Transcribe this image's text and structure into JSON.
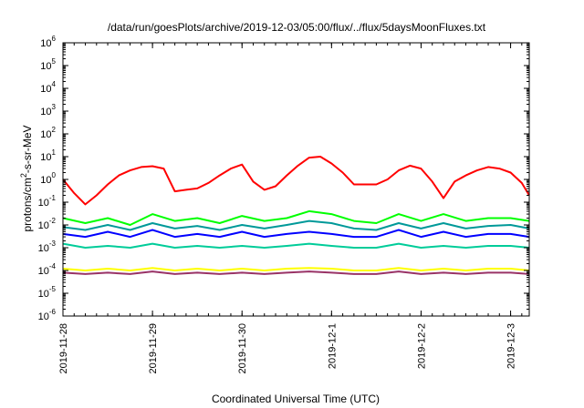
{
  "chart_data": {
    "type": "line",
    "title": "/data/run/goesPlots/archive/2019-12-03/05:00/flux/../flux/5daysMoonFluxes.txt",
    "xlabel": "Coordinated Universal Time (UTC)",
    "ylabel": "protons/cm2-s-sr-MeV",
    "ylabel_parts": {
      "pre": "protons/cm",
      "sup": "2",
      "post": "-s-sr-MeV"
    },
    "y_scale": "log",
    "ylim": [
      -6,
      6
    ],
    "y_ticks": [
      {
        "exp": -6,
        "label": "-6"
      },
      {
        "exp": -5,
        "label": "-5"
      },
      {
        "exp": -4,
        "label": "-4"
      },
      {
        "exp": -3,
        "label": "-3"
      },
      {
        "exp": -2,
        "label": "-2"
      },
      {
        "exp": -1,
        "label": "-1"
      },
      {
        "exp": 0,
        "label": "0"
      },
      {
        "exp": 1,
        "label": "1"
      },
      {
        "exp": 2,
        "label": "2"
      },
      {
        "exp": 3,
        "label": "3"
      },
      {
        "exp": 4,
        "label": "4"
      },
      {
        "exp": 5,
        "label": "5"
      },
      {
        "exp": 6,
        "label": "6"
      }
    ],
    "xlim": [
      "2019-11-28",
      "2019-12-03T05:00"
    ],
    "x_ticks": [
      {
        "date": "2019-11-28",
        "label": "2019-11-28"
      },
      {
        "date": "2019-11-29",
        "label": "2019-11-29"
      },
      {
        "date": "2019-11-30",
        "label": "2019-11-30"
      },
      {
        "date": "2019-12-01",
        "label": "2019-12-1"
      },
      {
        "date": "2019-12-02",
        "label": "2019-12-2"
      },
      {
        "date": "2019-12-03",
        "label": "2019-12-3"
      }
    ],
    "grid": false,
    "series": [
      {
        "color": "#ff0000",
        "x": [
          "2019-11-28T00:00",
          "2019-11-28T03:00",
          "2019-11-28T06:00",
          "2019-11-28T09:00",
          "2019-11-28T12:00",
          "2019-11-28T15:00",
          "2019-11-28T18:00",
          "2019-11-28T21:00",
          "2019-11-29T00:00",
          "2019-11-29T03:00",
          "2019-11-29T06:00",
          "2019-11-29T09:00",
          "2019-11-29T12:00",
          "2019-11-29T15:00",
          "2019-11-29T18:00",
          "2019-11-29T21:00",
          "2019-11-30T00:00",
          "2019-11-30T03:00",
          "2019-11-30T06:00",
          "2019-11-30T09:00",
          "2019-11-30T12:00",
          "2019-11-30T15:00",
          "2019-11-30T18:00",
          "2019-11-30T21:00",
          "2019-12-01T00:00",
          "2019-12-01T03:00",
          "2019-12-01T06:00",
          "2019-12-01T09:00",
          "2019-12-01T12:00",
          "2019-12-01T15:00",
          "2019-12-01T18:00",
          "2019-12-01T21:00",
          "2019-12-02T00:00",
          "2019-12-02T03:00",
          "2019-12-02T06:00",
          "2019-12-02T09:00",
          "2019-12-02T12:00",
          "2019-12-02T15:00",
          "2019-12-02T18:00",
          "2019-12-02T21:00",
          "2019-12-03T00:00",
          "2019-12-03T03:00",
          "2019-12-03T05:00"
        ],
        "y": [
          1.0,
          0.25,
          0.08,
          0.2,
          0.6,
          1.5,
          2.5,
          3.5,
          3.8,
          3.0,
          0.3,
          0.35,
          0.4,
          0.7,
          1.5,
          3.0,
          4.5,
          0.8,
          0.35,
          0.5,
          1.5,
          4.0,
          9.0,
          10.0,
          5.0,
          2.0,
          0.6,
          0.6,
          0.6,
          1.0,
          2.5,
          4.0,
          3.0,
          0.8,
          0.15,
          0.8,
          1.5,
          2.5,
          3.5,
          3.0,
          2.0,
          0.7,
          0.2
        ]
      },
      {
        "color": "#00ff00",
        "x": [
          "2019-11-28T00:00",
          "2019-11-28T06:00",
          "2019-11-28T12:00",
          "2019-11-28T18:00",
          "2019-11-29T00:00",
          "2019-11-29T06:00",
          "2019-11-29T12:00",
          "2019-11-29T18:00",
          "2019-11-30T00:00",
          "2019-11-30T06:00",
          "2019-11-30T12:00",
          "2019-11-30T18:00",
          "2019-12-01T00:00",
          "2019-12-01T06:00",
          "2019-12-01T12:00",
          "2019-12-01T18:00",
          "2019-12-02T00:00",
          "2019-12-02T06:00",
          "2019-12-02T12:00",
          "2019-12-02T18:00",
          "2019-12-03T00:00",
          "2019-12-03T05:00"
        ],
        "y": [
          0.02,
          0.012,
          0.02,
          0.01,
          0.03,
          0.015,
          0.02,
          0.012,
          0.025,
          0.015,
          0.02,
          0.04,
          0.03,
          0.015,
          0.012,
          0.03,
          0.015,
          0.03,
          0.015,
          0.02,
          0.02,
          0.015
        ]
      },
      {
        "color": "#009999",
        "x": [
          "2019-11-28T00:00",
          "2019-11-28T06:00",
          "2019-11-28T12:00",
          "2019-11-28T18:00",
          "2019-11-29T00:00",
          "2019-11-29T06:00",
          "2019-11-29T12:00",
          "2019-11-29T18:00",
          "2019-11-30T00:00",
          "2019-11-30T06:00",
          "2019-11-30T12:00",
          "2019-11-30T18:00",
          "2019-12-01T00:00",
          "2019-12-01T06:00",
          "2019-12-01T12:00",
          "2019-12-01T18:00",
          "2019-12-02T00:00",
          "2019-12-02T06:00",
          "2019-12-02T12:00",
          "2019-12-02T18:00",
          "2019-12-03T00:00",
          "2019-12-03T05:00"
        ],
        "y": [
          0.008,
          0.006,
          0.01,
          0.006,
          0.012,
          0.007,
          0.009,
          0.006,
          0.01,
          0.007,
          0.01,
          0.015,
          0.012,
          0.007,
          0.006,
          0.012,
          0.007,
          0.012,
          0.007,
          0.009,
          0.01,
          0.007
        ]
      },
      {
        "color": "#0000ff",
        "x": [
          "2019-11-28T00:00",
          "2019-11-28T06:00",
          "2019-11-28T12:00",
          "2019-11-28T18:00",
          "2019-11-29T00:00",
          "2019-11-29T06:00",
          "2019-11-29T12:00",
          "2019-11-29T18:00",
          "2019-11-30T00:00",
          "2019-11-30T06:00",
          "2019-11-30T12:00",
          "2019-11-30T18:00",
          "2019-12-01T00:00",
          "2019-12-01T06:00",
          "2019-12-01T12:00",
          "2019-12-01T18:00",
          "2019-12-02T00:00",
          "2019-12-02T06:00",
          "2019-12-02T12:00",
          "2019-12-02T18:00",
          "2019-12-03T00:00",
          "2019-12-03T05:00"
        ],
        "y": [
          0.004,
          0.003,
          0.005,
          0.003,
          0.006,
          0.003,
          0.004,
          0.003,
          0.005,
          0.003,
          0.004,
          0.005,
          0.004,
          0.003,
          0.003,
          0.006,
          0.003,
          0.005,
          0.003,
          0.004,
          0.004,
          0.003
        ]
      },
      {
        "color": "#00cc99",
        "x": [
          "2019-11-28T00:00",
          "2019-11-28T06:00",
          "2019-11-28T12:00",
          "2019-11-28T18:00",
          "2019-11-29T00:00",
          "2019-11-29T06:00",
          "2019-11-29T12:00",
          "2019-11-29T18:00",
          "2019-11-30T00:00",
          "2019-11-30T06:00",
          "2019-11-30T12:00",
          "2019-11-30T18:00",
          "2019-12-01T00:00",
          "2019-12-01T06:00",
          "2019-12-01T12:00",
          "2019-12-01T18:00",
          "2019-12-02T00:00",
          "2019-12-02T06:00",
          "2019-12-02T12:00",
          "2019-12-02T18:00",
          "2019-12-03T00:00",
          "2019-12-03T05:00"
        ],
        "y": [
          0.0015,
          0.001,
          0.0012,
          0.001,
          0.0015,
          0.001,
          0.0012,
          0.001,
          0.0012,
          0.001,
          0.0012,
          0.0015,
          0.0012,
          0.001,
          0.001,
          0.0015,
          0.001,
          0.0012,
          0.001,
          0.0012,
          0.0012,
          0.001
        ]
      },
      {
        "color": "#ffff00",
        "x": [
          "2019-11-28T00:00",
          "2019-11-28T06:00",
          "2019-11-28T12:00",
          "2019-11-28T18:00",
          "2019-11-29T00:00",
          "2019-11-29T06:00",
          "2019-11-29T12:00",
          "2019-11-29T18:00",
          "2019-11-30T00:00",
          "2019-11-30T06:00",
          "2019-11-30T12:00",
          "2019-11-30T18:00",
          "2019-12-01T00:00",
          "2019-12-01T06:00",
          "2019-12-01T12:00",
          "2019-12-01T18:00",
          "2019-12-02T00:00",
          "2019-12-02T06:00",
          "2019-12-02T12:00",
          "2019-12-02T18:00",
          "2019-12-03T00:00",
          "2019-12-03T05:00"
        ],
        "y": [
          0.00012,
          0.0001,
          0.00012,
          0.0001,
          0.00013,
          0.0001,
          0.00012,
          0.0001,
          0.00012,
          0.0001,
          0.00012,
          0.00013,
          0.00012,
          0.0001,
          0.0001,
          0.00013,
          0.0001,
          0.00012,
          0.0001,
          0.00012,
          0.00012,
          0.0001
        ]
      },
      {
        "color": "#993366",
        "x": [
          "2019-11-28T00:00",
          "2019-11-28T06:00",
          "2019-11-28T12:00",
          "2019-11-28T18:00",
          "2019-11-29T00:00",
          "2019-11-29T06:00",
          "2019-11-29T12:00",
          "2019-11-29T18:00",
          "2019-11-30T00:00",
          "2019-11-30T06:00",
          "2019-11-30T12:00",
          "2019-11-30T18:00",
          "2019-12-01T00:00",
          "2019-12-01T06:00",
          "2019-12-01T12:00",
          "2019-12-01T18:00",
          "2019-12-02T00:00",
          "2019-12-02T06:00",
          "2019-12-02T12:00",
          "2019-12-02T18:00",
          "2019-12-03T00:00",
          "2019-12-03T05:00"
        ],
        "y": [
          8e-05,
          7e-05,
          8e-05,
          7e-05,
          9e-05,
          7e-05,
          8e-05,
          7e-05,
          8e-05,
          7e-05,
          8e-05,
          9e-05,
          8e-05,
          7e-05,
          7e-05,
          9e-05,
          7e-05,
          8e-05,
          7e-05,
          8e-05,
          8e-05,
          7e-05
        ]
      }
    ]
  }
}
